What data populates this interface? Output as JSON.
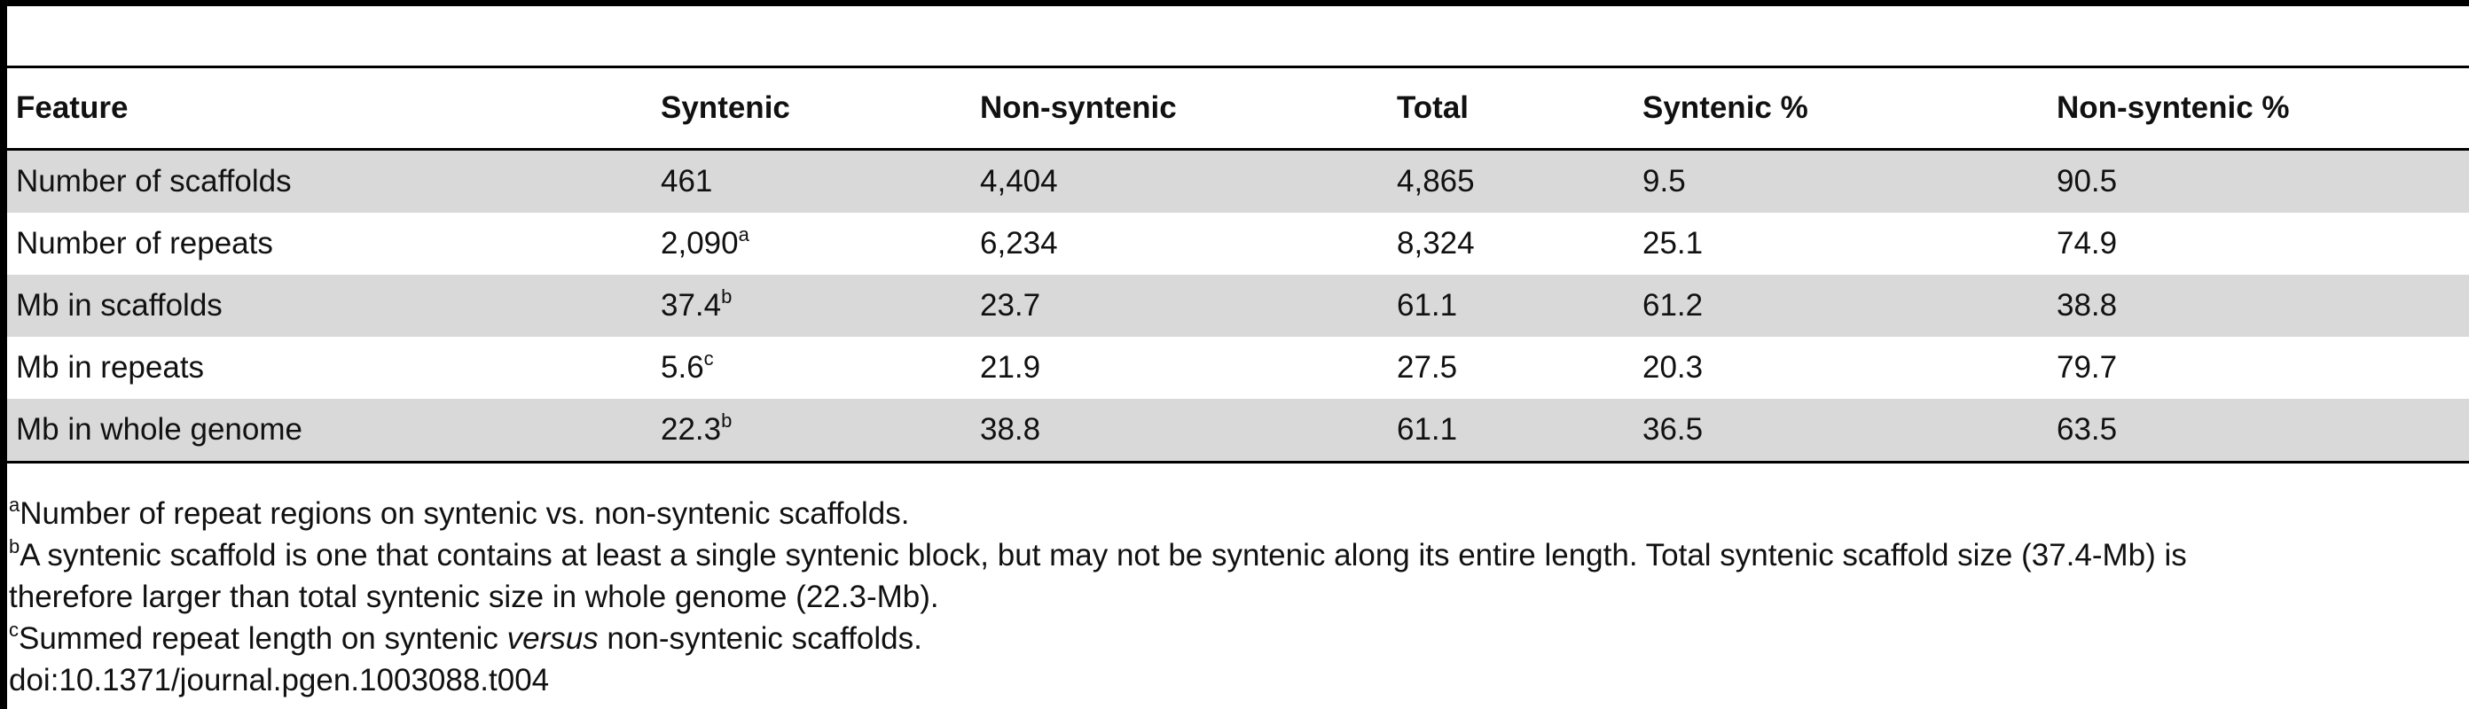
{
  "table": {
    "headers": [
      "Feature",
      "Syntenic",
      "Non-syntenic",
      "Total",
      "Syntenic %",
      "Non-syntenic %"
    ],
    "rows": [
      {
        "feature": "Number of scaffolds",
        "syntenic": "461",
        "syntenic_sup": "",
        "non_syntenic": "4,404",
        "total": "4,865",
        "syntenic_pct": "9.5",
        "non_syntenic_pct": "90.5"
      },
      {
        "feature": "Number of repeats",
        "syntenic": "2,090",
        "syntenic_sup": "a",
        "non_syntenic": "6,234",
        "total": "8,324",
        "syntenic_pct": "25.1",
        "non_syntenic_pct": "74.9"
      },
      {
        "feature": "Mb in scaffolds",
        "syntenic": "37.4",
        "syntenic_sup": "b",
        "non_syntenic": "23.7",
        "total": "61.1",
        "syntenic_pct": "61.2",
        "non_syntenic_pct": "38.8"
      },
      {
        "feature": "Mb in repeats",
        "syntenic": "5.6",
        "syntenic_sup": "c",
        "non_syntenic": "21.9",
        "total": "27.5",
        "syntenic_pct": "20.3",
        "non_syntenic_pct": "79.7"
      },
      {
        "feature": "Mb in whole genome",
        "syntenic": "22.3",
        "syntenic_sup": "b",
        "non_syntenic": "38.8",
        "total": "61.1",
        "syntenic_pct": "36.5",
        "non_syntenic_pct": "63.5"
      }
    ]
  },
  "footnotes": {
    "a": {
      "mark": "a",
      "text": "Number of repeat regions on syntenic vs. non-syntenic scaffolds."
    },
    "b": {
      "mark": "b",
      "line1": "A syntenic scaffold is one that contains at least a single syntenic block, but may not be syntenic along its entire length. Total syntenic scaffold size (37.4-Mb) is",
      "line2": "therefore larger than total syntenic size in whole genome (22.3-Mb)."
    },
    "c": {
      "mark": "c",
      "before": "Summed repeat length on syntenic ",
      "italic": "versus",
      "after": " non-syntenic scaffolds."
    },
    "doi": "doi:10.1371/journal.pgen.1003088.t004"
  }
}
